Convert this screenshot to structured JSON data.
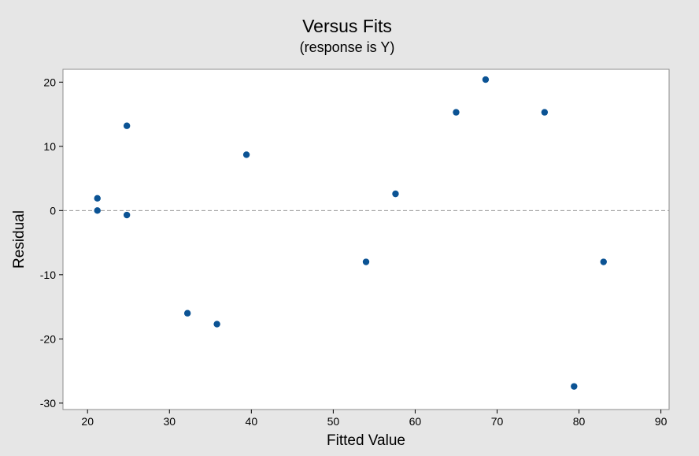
{
  "chart_data": {
    "type": "scatter",
    "title": "Versus Fits",
    "subtitle": "(response is Y)",
    "xlabel": "Fitted Value",
    "ylabel": "Residual",
    "xlim": [
      17,
      91
    ],
    "ylim": [
      -31,
      22
    ],
    "x_ticks": [
      20,
      30,
      40,
      50,
      60,
      70,
      80,
      90
    ],
    "y_ticks": [
      20,
      10,
      0,
      -10,
      -20,
      -30
    ],
    "reference_line": {
      "y": 0,
      "style": "dashed"
    },
    "grid": false,
    "series": [
      {
        "color": "#0b5394",
        "points": [
          {
            "x": 21.2,
            "y": 1.9
          },
          {
            "x": 21.2,
            "y": 0.0
          },
          {
            "x": 24.8,
            "y": 13.2
          },
          {
            "x": 24.8,
            "y": -0.7
          },
          {
            "x": 32.2,
            "y": -16.0
          },
          {
            "x": 35.8,
            "y": -17.7
          },
          {
            "x": 39.4,
            "y": 8.7
          },
          {
            "x": 54.0,
            "y": -8.0
          },
          {
            "x": 57.6,
            "y": 2.6
          },
          {
            "x": 65.0,
            "y": 15.3
          },
          {
            "x": 68.6,
            "y": 20.4
          },
          {
            "x": 75.8,
            "y": 15.3
          },
          {
            "x": 79.4,
            "y": -27.4
          },
          {
            "x": 83.0,
            "y": -8.0
          }
        ]
      }
    ]
  },
  "colors": {
    "background": "#e6e6e6",
    "plot_area": "#ffffff",
    "marker": "#0b5394",
    "reference_line": "#999999"
  }
}
